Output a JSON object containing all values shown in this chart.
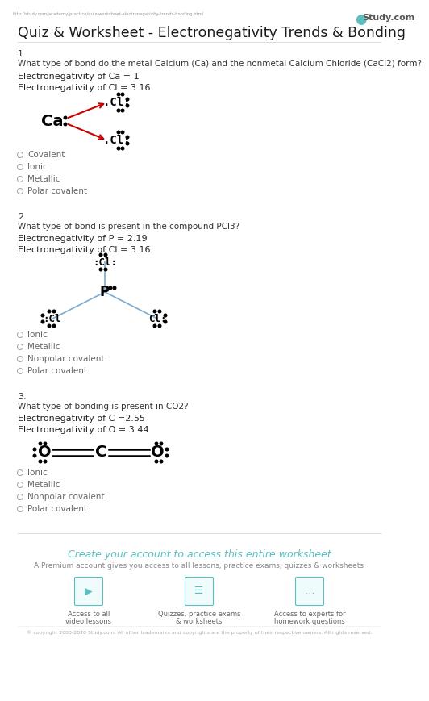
{
  "title": "Quiz & Worksheet - Electronegativity Trends & Bonding",
  "url": "http://study.com/academy/practice/quiz-worksheet-electronegativity-trends-bonding.html",
  "studycom": "Study.com",
  "bg_color": "#ffffff",
  "q1_number": "1.",
  "q1_text": "What type of bond do the metal Calcium (Ca) and the nonmetal Calcium Chloride (CaCl2) form?",
  "q1_en1": "Electronegativity of Ca = 1",
  "q1_en2": "Electronegativity of Cl = 3.16",
  "q1_options": [
    "Covalent",
    "Ionic",
    "Metallic",
    "Polar covalent"
  ],
  "q2_number": "2.",
  "q2_text": "What type of bond is present in the compound PCl3?",
  "q2_en1": "Electronegativity of P = 2.19",
  "q2_en2": "Electronegativity of Cl = 3.16",
  "q2_options": [
    "Ionic",
    "Metallic",
    "Nonpolar covalent",
    "Polar covalent"
  ],
  "q3_number": "3.",
  "q3_text": "What type of bonding is present in CO2?",
  "q3_en1": "Electronegativity of C =2.55",
  "q3_en2": "Electronegativity of O = 3.44",
  "q3_options": [
    "Ionic",
    "Metallic",
    "Nonpolar covalent",
    "Polar covalent"
  ],
  "cta_title": "Create your account to access this entire worksheet",
  "cta_sub": "A Premium account gives you access to all lessons, practice exams, quizzes & worksheets",
  "icon1_line1": "Access to all",
  "icon1_line2": "video lessons",
  "icon2_line1": "Quizzes, practice exams",
  "icon2_line2": "& worksheets",
  "icon3_line1": "Access to experts for",
  "icon3_line2": "homework questions",
  "footer": "© copyright 2003-2020 Study.com. All other trademarks and copyrights are the property of their respective owners. All rights reserved.",
  "arrow_color": "#cc0000",
  "teal_color": "#5bbfbf",
  "bond_color": "#7aabcf",
  "option_color": "#aaaaaa",
  "text_color": "#333333",
  "en_color": "#222222",
  "small_color": "#666666"
}
